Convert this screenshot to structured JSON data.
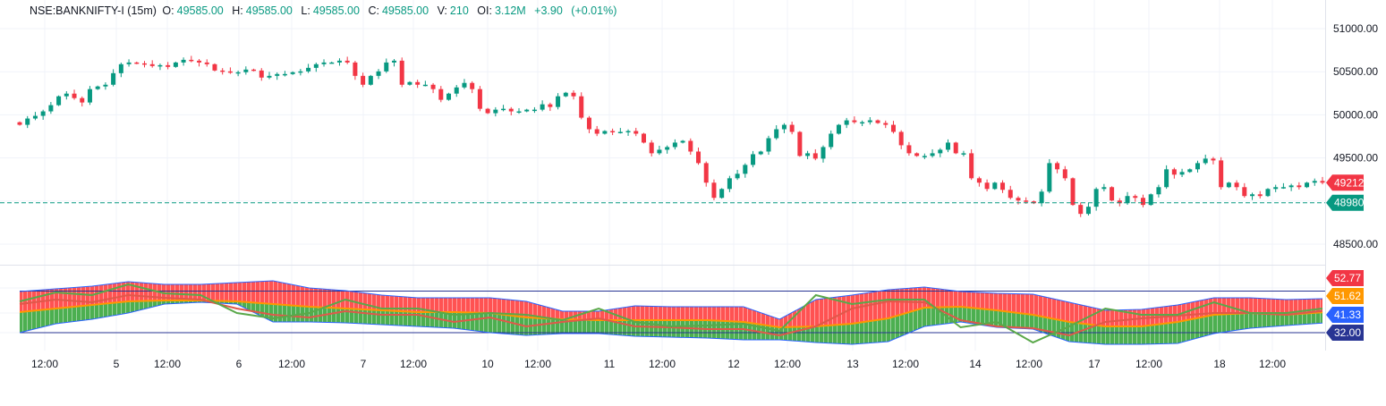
{
  "legend": {
    "symbol": "NSE:BANKNIFTY-I (15m)",
    "o_label": "O:",
    "o": "49585.00",
    "h_label": "H:",
    "h": "49585.00",
    "l_label": "L:",
    "l": "49585.00",
    "c_label": "C:",
    "c": "49585.00",
    "v_label": "V:",
    "v": "210",
    "oi_label": "OI:",
    "oi": "3.12M",
    "change": "+3.90",
    "change_pct": "(+0.01%)"
  },
  "colors": {
    "up": "#089981",
    "down": "#f23645",
    "band_upper_fill": "#ff5252",
    "band_lower_fill": "#4caf50",
    "mid_line": "#ff9800",
    "band_edge": "#2962ff",
    "rsi_line": "#5aa84a",
    "signal_line": "#e0584a",
    "level_line": "#283593"
  },
  "chart_data": [
    {
      "type": "candlestick",
      "price_axis_ticks": [
        "51000.00",
        "50500.00",
        "50000.00",
        "49500.00",
        "48500.00"
      ],
      "ylim": [
        48300,
        51150
      ],
      "time_axis_ticks": [
        "12:00",
        "5",
        "12:00",
        "6",
        "12:00",
        "7",
        "12:00",
        "10",
        "12:00",
        "11",
        "12:00",
        "12",
        "12:00",
        "13",
        "12:00",
        "14",
        "12:00",
        "17",
        "12:00",
        "18",
        "12:00"
      ],
      "last_price": "49212.95",
      "horizontal_line": "48980.00",
      "close": [
        49884,
        49957,
        49988,
        50040,
        50112,
        50215,
        50246,
        50194,
        50143,
        50298,
        50329,
        50349,
        50483,
        50587,
        50607,
        50597,
        50587,
        50566,
        50576,
        50556,
        50607,
        50638,
        50628,
        50607,
        50587,
        50514,
        50504,
        50494,
        50494,
        50525,
        50514,
        50432,
        50452,
        50473,
        50473,
        50494,
        50504,
        50545,
        50587,
        50607,
        50607,
        50628,
        50607,
        50452,
        50349,
        50452,
        50504,
        50607,
        50628,
        50349,
        50380,
        50349,
        50349,
        50298,
        50174,
        50246,
        50318,
        50370,
        50298,
        50070,
        50019,
        50060,
        50070,
        50040,
        50040,
        50060,
        50060,
        50122,
        50091,
        50215,
        50256,
        50215,
        49967,
        49833,
        49781,
        49812,
        49802,
        49802,
        49812,
        49781,
        49678,
        49554,
        49595,
        49626,
        49678,
        49698,
        49574,
        49440,
        49213,
        49037,
        49140,
        49264,
        49316,
        49419,
        49543,
        49574,
        49729,
        49833,
        49884,
        49802,
        49523,
        49554,
        49492,
        49626,
        49781,
        49884,
        49936,
        49915,
        49915,
        49936,
        49905,
        49884,
        49802,
        49647,
        49554,
        49523,
        49523,
        49554,
        49595,
        49678,
        49554,
        49554,
        49264,
        49213,
        49140,
        49213,
        49130,
        49037,
        49006,
        48996,
        48975,
        49109,
        49440,
        49368,
        49264,
        48955,
        48851,
        48934,
        49140,
        49161,
        49006,
        48975,
        49058,
        49037,
        48955,
        49078,
        49161,
        49368,
        49306,
        49337,
        49368,
        49440,
        49492,
        49471,
        49161,
        49213,
        49161,
        49058,
        49078,
        49058,
        49140,
        49161,
        49161,
        49181,
        49161,
        49213,
        49233,
        49213
      ]
    },
    {
      "type": "line",
      "value_labels": [
        "52.77",
        "51.62",
        "41.33",
        "32.00"
      ],
      "levels": [
        72,
        32
      ],
      "ylim": [
        22,
        88
      ],
      "upper_band": [
        71.6,
        74.1,
        76.7,
        81.0,
        78.4,
        78.4,
        80.2,
        81.9,
        75.0,
        72.4,
        68.1,
        65.5,
        65.5,
        65.5,
        62.1,
        52.6,
        52.6,
        57.8,
        56.9,
        56.9,
        56.9,
        44.9,
        63.8,
        68.1,
        73.3,
        75.9,
        71.6,
        69.8,
        69.0,
        61.2,
        53.5,
        54.4,
        58.7,
        65.5,
        65.5,
        63.8,
        64.7
      ],
      "middle": [
        51.8,
        55.2,
        58.7,
        62.1,
        63.0,
        63.0,
        62.1,
        59.5,
        56.9,
        55.2,
        53.5,
        51.8,
        51.8,
        50.9,
        46.6,
        44.9,
        44.0,
        44.0,
        44.0,
        44.0,
        42.3,
        37.2,
        38.0,
        40.6,
        45.8,
        56.1,
        56.9,
        53.5,
        49.2,
        42.3,
        38.0,
        38.0,
        42.3,
        49.2,
        50.9,
        49.2,
        51.62
      ],
      "lower_band": [
        32.0,
        40.6,
        44.9,
        50.9,
        59.5,
        61.2,
        59.5,
        42.3,
        42.3,
        41.5,
        39.7,
        38.0,
        36.3,
        32.0,
        29.4,
        31.1,
        31.1,
        28.6,
        27.7,
        26.8,
        25.1,
        25.1,
        22.5,
        20.8,
        23.4,
        38.0,
        42.3,
        37.2,
        35.4,
        23.4,
        20.8,
        20.8,
        21.7,
        31.1,
        36.3,
        38.9,
        41.33
      ],
      "rsi": [
        62.1,
        70.7,
        68.1,
        78.4,
        69.8,
        68.1,
        50.9,
        45.8,
        50.9,
        63.8,
        55.2,
        55.2,
        49.2,
        50.9,
        49.2,
        44.0,
        55.2,
        42.3,
        38.0,
        38.9,
        40.6,
        33.7,
        68.1,
        59.5,
        63.8,
        63.8,
        37.2,
        42.3,
        22.5,
        38.0,
        55.2,
        49.2,
        49.2,
        61.2,
        50.9,
        50.9,
        55.2
      ],
      "signal": [
        59.5,
        63.8,
        61.2,
        68.1,
        65.5,
        63.8,
        55.2,
        49.2,
        46.6,
        52.6,
        49.2,
        49.2,
        42.3,
        46.6,
        38.0,
        42.3,
        45.8,
        38.0,
        37.2,
        35.4,
        35.4,
        29.4,
        38.0,
        55.2,
        62.1,
        61.2,
        44.0,
        38.0,
        36.3,
        29.4,
        42.3,
        45.8,
        48.3,
        50.9,
        50.9,
        49.2,
        52.77
      ]
    }
  ]
}
